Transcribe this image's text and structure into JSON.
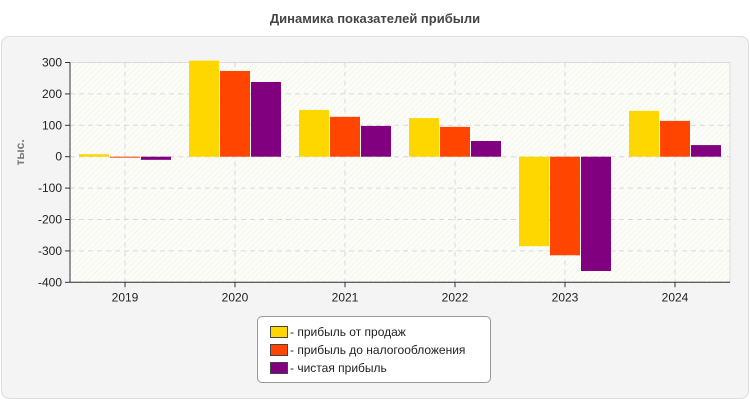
{
  "chart_data": {
    "type": "bar",
    "title": "Динамика показателей прибыли",
    "ylabel": "тыс.",
    "xlabel": "",
    "categories": [
      "2019",
      "2020",
      "2021",
      "2022",
      "2023",
      "2024"
    ],
    "ylim": [
      -400,
      300
    ],
    "yticks": [
      "300",
      "200",
      "100",
      "0",
      "-100",
      "-200",
      "-300",
      "-400"
    ],
    "grid": true,
    "legend_position": "bottom",
    "series": [
      {
        "name": "- прибыль от продаж",
        "color": "#FFD700",
        "values": [
          8,
          306,
          149,
          123,
          -285,
          146
        ]
      },
      {
        "name": "- прибыль до налогообложения",
        "color": "#FF4500",
        "values": [
          -3,
          273,
          127,
          95,
          -314,
          114
        ]
      },
      {
        "name": "- чистая прибыль",
        "color": "#800080",
        "values": [
          -10,
          238,
          98,
          50,
          -364,
          37
        ]
      }
    ]
  }
}
